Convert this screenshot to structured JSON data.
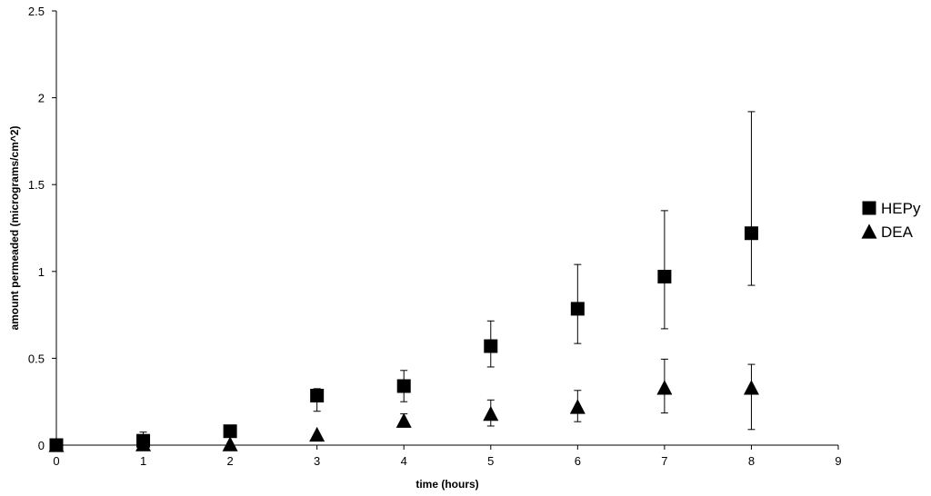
{
  "chart_data": {
    "type": "scatter",
    "xlabel": "time (hours)",
    "ylabel": "amount permeaded (micrograms/cm^2)",
    "xlim": [
      0,
      9
    ],
    "ylim": [
      0,
      2.5
    ],
    "x_ticks": [
      "0",
      "1",
      "2",
      "3",
      "4",
      "5",
      "6",
      "7",
      "8",
      "9"
    ],
    "y_ticks": [
      "0",
      "0.5",
      "1",
      "1.5",
      "2",
      "2.5"
    ],
    "grid": false,
    "legend_position": "right",
    "series": [
      {
        "name": "HEPy",
        "marker": "square",
        "color": "#000000",
        "x": [
          0,
          1,
          2,
          3,
          4,
          5,
          6,
          7,
          8
        ],
        "y": [
          0,
          0.025,
          0.08,
          0.285,
          0.34,
          0.57,
          0.785,
          0.97,
          1.22
        ],
        "err_low": [
          0,
          0.01,
          0,
          0.09,
          0.09,
          0.12,
          0.2,
          0.3,
          0.3
        ],
        "err_high": [
          0,
          0.05,
          0,
          0.04,
          0.09,
          0.145,
          0.255,
          0.38,
          0.7
        ]
      },
      {
        "name": "DEA",
        "marker": "triangle",
        "color": "#000000",
        "x": [
          0,
          1,
          2,
          3,
          4,
          5,
          6,
          7,
          8
        ],
        "y": [
          0,
          0.005,
          0.005,
          0.06,
          0.14,
          0.18,
          0.22,
          0.33,
          0.33
        ],
        "err_low": [
          0,
          0,
          0,
          0,
          0,
          0.07,
          0.085,
          0.145,
          0.24
        ],
        "err_high": [
          0,
          0,
          0,
          0,
          0.04,
          0.08,
          0.095,
          0.165,
          0.135
        ]
      }
    ]
  }
}
